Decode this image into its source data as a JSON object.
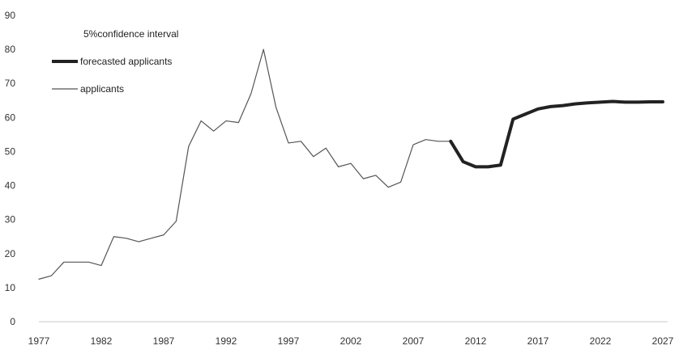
{
  "chart_data": {
    "type": "line",
    "title": "",
    "xlabel": "",
    "ylabel": "",
    "xlim": [
      1977,
      2027
    ],
    "ylim": [
      0,
      90
    ],
    "y_ticks": [
      "0",
      "10",
      "20",
      "30",
      "40",
      "50",
      "60",
      "70",
      "80",
      "90"
    ],
    "x_ticks": [
      "1977",
      "1982",
      "1987",
      "1992",
      "1997",
      "2002",
      "2007",
      "2012",
      "2017",
      "2022",
      "2027"
    ],
    "grid": false,
    "legend_position": "top-left",
    "legend": [
      {
        "label": "5%confidence interval",
        "style": "none"
      },
      {
        "label": "forecasted applicants",
        "style": "thick"
      },
      {
        "label": "applicants",
        "style": "thin"
      }
    ],
    "series": [
      {
        "name": "applicants",
        "color": "#555555",
        "x": [
          1977,
          1978,
          1979,
          1980,
          1981,
          1982,
          1983,
          1984,
          1985,
          1986,
          1987,
          1988,
          1989,
          1990,
          1991,
          1992,
          1993,
          1994,
          1995,
          1996,
          1997,
          1998,
          1999,
          2000,
          2001,
          2002,
          2003,
          2004,
          2005,
          2006,
          2007,
          2008,
          2009,
          2010
        ],
        "values": [
          12.5,
          13.5,
          17.5,
          17.5,
          17.5,
          16.5,
          25,
          24.5,
          23.5,
          24.5,
          25.5,
          29.5,
          51.5,
          59,
          56,
          59,
          58.5,
          67,
          80,
          63,
          52.5,
          53,
          48.5,
          51,
          45.5,
          46.5,
          42,
          43,
          39.5,
          41,
          52,
          53.5,
          53,
          53
        ]
      },
      {
        "name": "forecasted applicants",
        "color": "#222222",
        "x": [
          2010,
          2011,
          2012,
          2013,
          2014,
          2015,
          2016,
          2017,
          2018,
          2019,
          2020,
          2021,
          2022,
          2023,
          2024,
          2025,
          2026,
          2027
        ],
        "values": [
          53,
          47,
          45.5,
          45.5,
          46,
          59.5,
          61,
          62.5,
          63.2,
          63.5,
          64,
          64.3,
          64.5,
          64.7,
          64.5,
          64.5,
          64.6,
          64.6
        ]
      }
    ]
  }
}
